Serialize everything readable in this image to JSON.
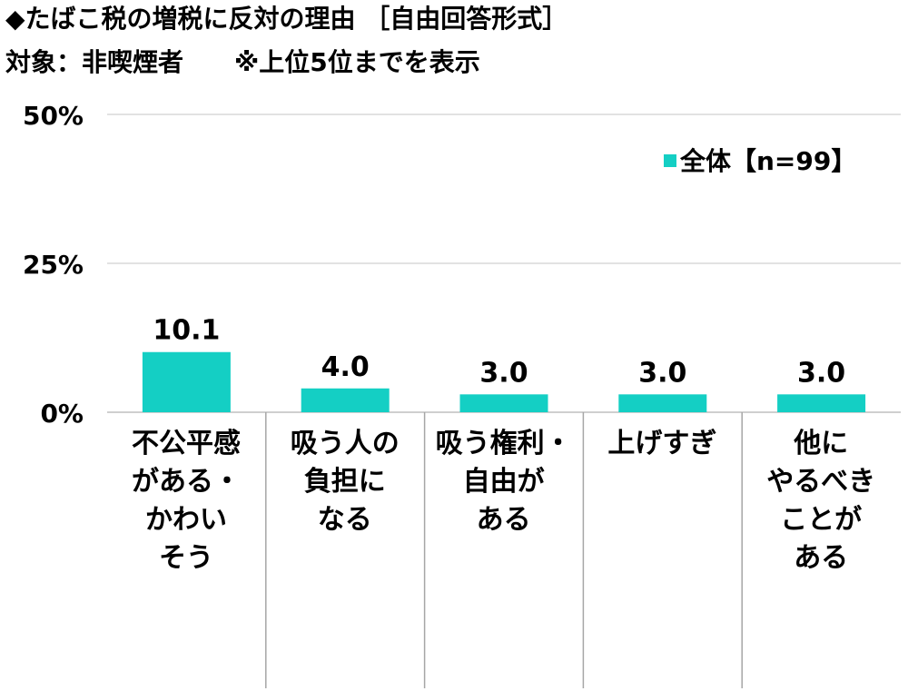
{
  "header": {
    "title": "◆たばこ税の増税に反対の理由 ［自由回答形式］",
    "subtitle": "対象：非喫煙者　　※上位5位までを表示"
  },
  "chart_data": {
    "type": "bar",
    "categories": [
      "不公平感\nがある・\nかわい\nそう",
      "吸う人の\n負担に\nなる",
      "吸う権利・\n自由が\nある",
      "上げすぎ",
      "他に\nやるべき\nことが\nある"
    ],
    "series": [
      {
        "name": "全体【n=99】",
        "values": [
          10.1,
          4.0,
          3.0,
          3.0,
          3.0
        ],
        "labels": [
          "10.1",
          "4.0",
          "3.0",
          "3.0",
          "3.0"
        ]
      }
    ],
    "ylim": [
      0,
      50
    ],
    "yticks": [
      {
        "value": 0,
        "label": "0%"
      },
      {
        "value": 25,
        "label": "25%"
      },
      {
        "value": 50,
        "label": "50%"
      }
    ],
    "grid": true,
    "legend_position": "top-right",
    "colors": {
      "bar": "#14cfc4",
      "grid": "#d9d9d9",
      "axis": "#bfbfbf",
      "divider": "#a6a6a6"
    }
  }
}
